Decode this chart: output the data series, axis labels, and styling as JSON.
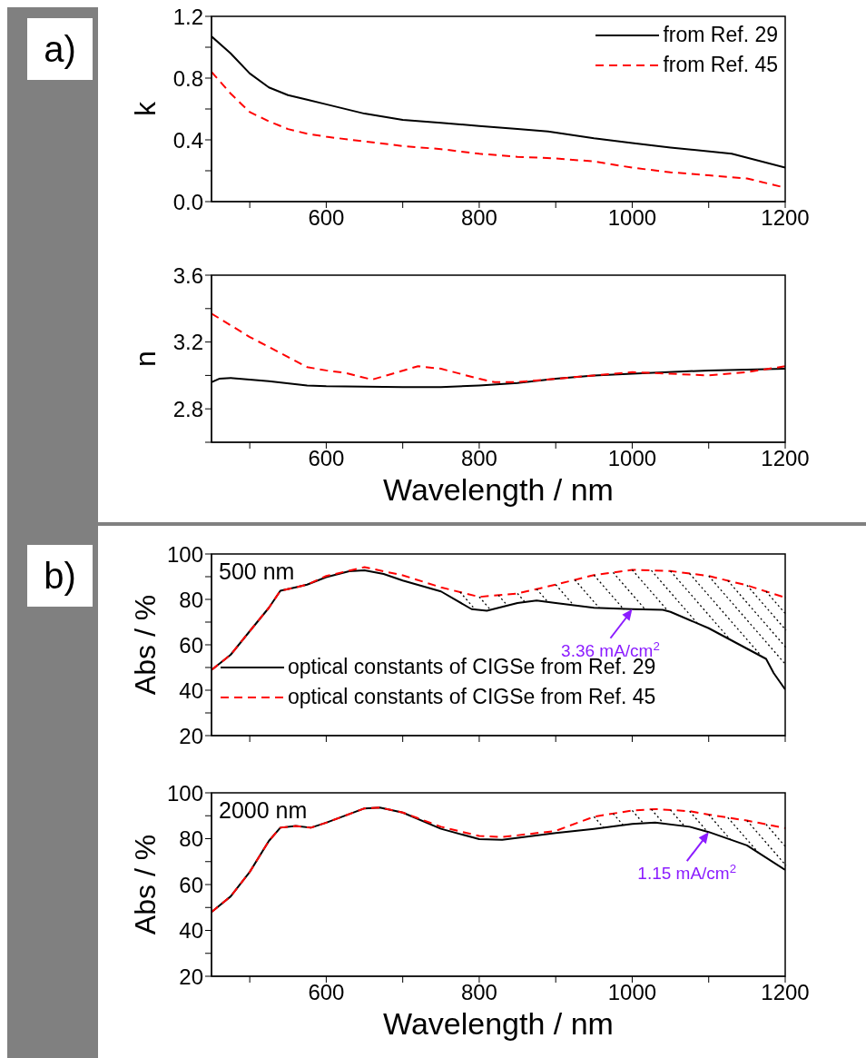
{
  "chart_data": [
    {
      "type": "line",
      "title": "a)",
      "ylabel": "k",
      "xlim": [
        450,
        1200
      ],
      "xticks": [
        {
          "value": 500,
          "label": null
        },
        600,
        {
          "value": 700,
          "label": null
        },
        800,
        {
          "value": 900,
          "label": null
        },
        1000,
        {
          "value": 1100,
          "label": null
        },
        1200
      ],
      "ylim": [
        0,
        1.2
      ],
      "yticks": [
        {
          "value": 0,
          "label": "0.0"
        },
        {
          "value": 0.2,
          "label": null
        },
        0.4,
        {
          "value": 0.6,
          "label": null
        },
        0.8,
        {
          "value": 1.0,
          "label": null
        },
        1.2
      ],
      "legend": "top right",
      "series": [
        {
          "name": "from Ref. 29",
          "color": "#000000",
          "line_style": "solid",
          "x": [
            450,
            475,
            500,
            525,
            550,
            575,
            600,
            650,
            700,
            750,
            800,
            850,
            890,
            950,
            1000,
            1050,
            1130,
            1200
          ],
          "values": [
            1.07,
            0.96,
            0.83,
            0.74,
            0.69,
            0.66,
            0.63,
            0.57,
            0.53,
            0.51,
            0.49,
            0.47,
            0.455,
            0.41,
            0.38,
            0.35,
            0.31,
            0.22
          ]
        },
        {
          "name": "from Ref. 45",
          "color": "#ff0000",
          "line_style": "dashed",
          "x": [
            450,
            475,
            500,
            525,
            550,
            575,
            600,
            650,
            700,
            750,
            800,
            850,
            900,
            950,
            1000,
            1050,
            1100,
            1150,
            1200
          ],
          "values": [
            0.84,
            0.7,
            0.58,
            0.52,
            0.47,
            0.44,
            0.42,
            0.39,
            0.36,
            0.34,
            0.31,
            0.29,
            0.28,
            0.26,
            0.22,
            0.19,
            0.17,
            0.15,
            0.09
          ]
        }
      ]
    },
    {
      "type": "line",
      "ylabel": "n",
      "xlabel": "Wavelength / nm",
      "xlim": [
        450,
        1200
      ],
      "xticks": [
        {
          "value": 500,
          "label": null
        },
        600,
        {
          "value": 700,
          "label": null
        },
        800,
        {
          "value": 900,
          "label": null
        },
        1000,
        {
          "value": 1100,
          "label": null
        },
        1200
      ],
      "ylim": [
        2.6,
        3.6
      ],
      "yticks": [
        {
          "value": 2.6,
          "label": null
        },
        2.8,
        {
          "value": 3.0,
          "label": null
        },
        3.2,
        {
          "value": 3.4,
          "label": null
        },
        3.6
      ],
      "series": [
        {
          "color": "#000000",
          "line_style": "solid",
          "x": [
            450,
            460,
            475,
            525,
            575,
            600,
            700,
            750,
            800,
            850,
            900,
            950,
            1000,
            1100,
            1200
          ],
          "values": [
            2.96,
            2.98,
            2.985,
            2.965,
            2.94,
            2.935,
            2.93,
            2.93,
            2.94,
            2.955,
            2.98,
            3.0,
            3.01,
            3.03,
            3.04
          ]
        },
        {
          "color": "#ff0000",
          "line_style": "dashed",
          "x": [
            450,
            500,
            550,
            575,
            600,
            625,
            660,
            690,
            720,
            750,
            800,
            820,
            850,
            900,
            950,
            1000,
            1050,
            1100,
            1150,
            1200
          ],
          "values": [
            3.37,
            3.23,
            3.11,
            3.05,
            3.03,
            3.015,
            2.975,
            3.015,
            3.055,
            3.04,
            2.98,
            2.96,
            2.96,
            2.98,
            3.0,
            3.02,
            3.01,
            3.0,
            3.02,
            3.055
          ]
        }
      ]
    },
    {
      "type": "line",
      "title": "b)",
      "ylabel": "Abs / %",
      "xlim": [
        450,
        1200
      ],
      "xticks": [
        {
          "value": 500,
          "label": null
        },
        {
          "value": 600,
          "label": null
        },
        {
          "value": 700,
          "label": null
        },
        {
          "value": 800,
          "label": null
        },
        {
          "value": 900,
          "label": null
        },
        {
          "value": 1000,
          "label": null
        },
        {
          "value": 1100,
          "label": null
        },
        {
          "value": 1200,
          "label": null
        }
      ],
      "ylim": [
        20,
        100
      ],
      "yticks": [
        20,
        {
          "value": 30,
          "label": null
        },
        40,
        {
          "value": 50,
          "label": null
        },
        60,
        {
          "value": 70,
          "label": null
        },
        80,
        {
          "value": 90,
          "label": null
        },
        100
      ],
      "tick_labels": "y",
      "legend": "bottom left",
      "annotations": [
        "500 nm",
        {
          "text": "3.36 mA/cm$^{2}$",
          "x": 1000,
          "y": 75.7
        }
      ],
      "series": [
        {
          "name": "optical constants of CIGSe from Ref. 29",
          "color": "#000000",
          "line_style": "solid",
          "x": [
            450,
            475,
            500,
            525,
            540,
            560,
            575,
            600,
            630,
            650,
            675,
            700,
            750,
            790,
            810,
            850,
            875,
            900,
            950,
            1000,
            1040,
            1050,
            1100,
            1125,
            1150,
            1175,
            1185,
            1200
          ],
          "values": [
            48.9,
            55.6,
            66,
            76.3,
            83.8,
            85.3,
            86.5,
            89.8,
            92.4,
            92.8,
            91.2,
            88.3,
            83.5,
            75.7,
            75,
            78.4,
            79.5,
            78.4,
            76.3,
            75.7,
            75.4,
            74.5,
            67.3,
            62.8,
            58.3,
            53.8,
            47.5,
            40.3
          ]
        },
        {
          "name": "optical constants of CIGSe from Ref. 45",
          "color": "#ff0000",
          "line_style": "dashed",
          "x": [
            450,
            475,
            500,
            525,
            540,
            560,
            575,
            600,
            650,
            700,
            750,
            800,
            850,
            900,
            950,
            1000,
            1050,
            1100,
            1150,
            1200
          ],
          "values": [
            48.9,
            55.6,
            66,
            76.3,
            83.8,
            85.3,
            86.5,
            90.3,
            94.2,
            90.6,
            85.3,
            81.1,
            82.6,
            86.5,
            90.7,
            93,
            92.5,
            90.3,
            86.2,
            80.8
          ]
        }
      ]
    },
    {
      "type": "line",
      "ylabel": "Abs / %",
      "xlabel": "Wavelength / nm",
      "xlim": [
        450,
        1200
      ],
      "xticks": [
        {
          "value": 500,
          "label": null
        },
        600,
        {
          "value": 700,
          "label": null
        },
        800,
        {
          "value": 900,
          "label": null
        },
        1000,
        {
          "value": 1100,
          "label": null
        },
        1200
      ],
      "ylim": [
        20,
        100
      ],
      "yticks": [
        20,
        {
          "value": 30,
          "label": null
        },
        40,
        {
          "value": 50,
          "label": null
        },
        60,
        {
          "value": 70,
          "label": null
        },
        80,
        {
          "value": 90,
          "label": null
        },
        100
      ],
      "annotations": [
        "2000 nm",
        {
          "text": "1.15 mA/cm$^{2}$",
          "x": 1100,
          "y": 82.9
        }
      ],
      "series": [
        {
          "color": "#000000",
          "line_style": "solid",
          "x": [
            450,
            475,
            500,
            525,
            540,
            560,
            580,
            600,
            650,
            670,
            700,
            750,
            800,
            830,
            900,
            950,
            1000,
            1030,
            1075,
            1100,
            1150,
            1200
          ],
          "values": [
            48,
            54.8,
            65.5,
            79,
            84.8,
            85.5,
            84.8,
            87,
            93.2,
            93.6,
            91.4,
            84.3,
            79.8,
            79.5,
            82.5,
            84.3,
            86.4,
            87,
            85.2,
            82.9,
            77.1,
            66.4
          ]
        },
        {
          "color": "#ff0000",
          "line_style": "dashed",
          "x": [
            450,
            475,
            500,
            525,
            540,
            560,
            580,
            600,
            650,
            670,
            700,
            750,
            800,
            830,
            900,
            950,
            1000,
            1030,
            1075,
            1100,
            1150,
            1200
          ],
          "values": [
            48,
            54.8,
            65.5,
            79,
            84.8,
            85.5,
            84.8,
            87,
            93.2,
            93.6,
            91.4,
            85.2,
            81.2,
            80.7,
            83.4,
            89.6,
            92.3,
            92.9,
            92,
            90.5,
            87.9,
            84.6
          ]
        }
      ]
    }
  ]
}
